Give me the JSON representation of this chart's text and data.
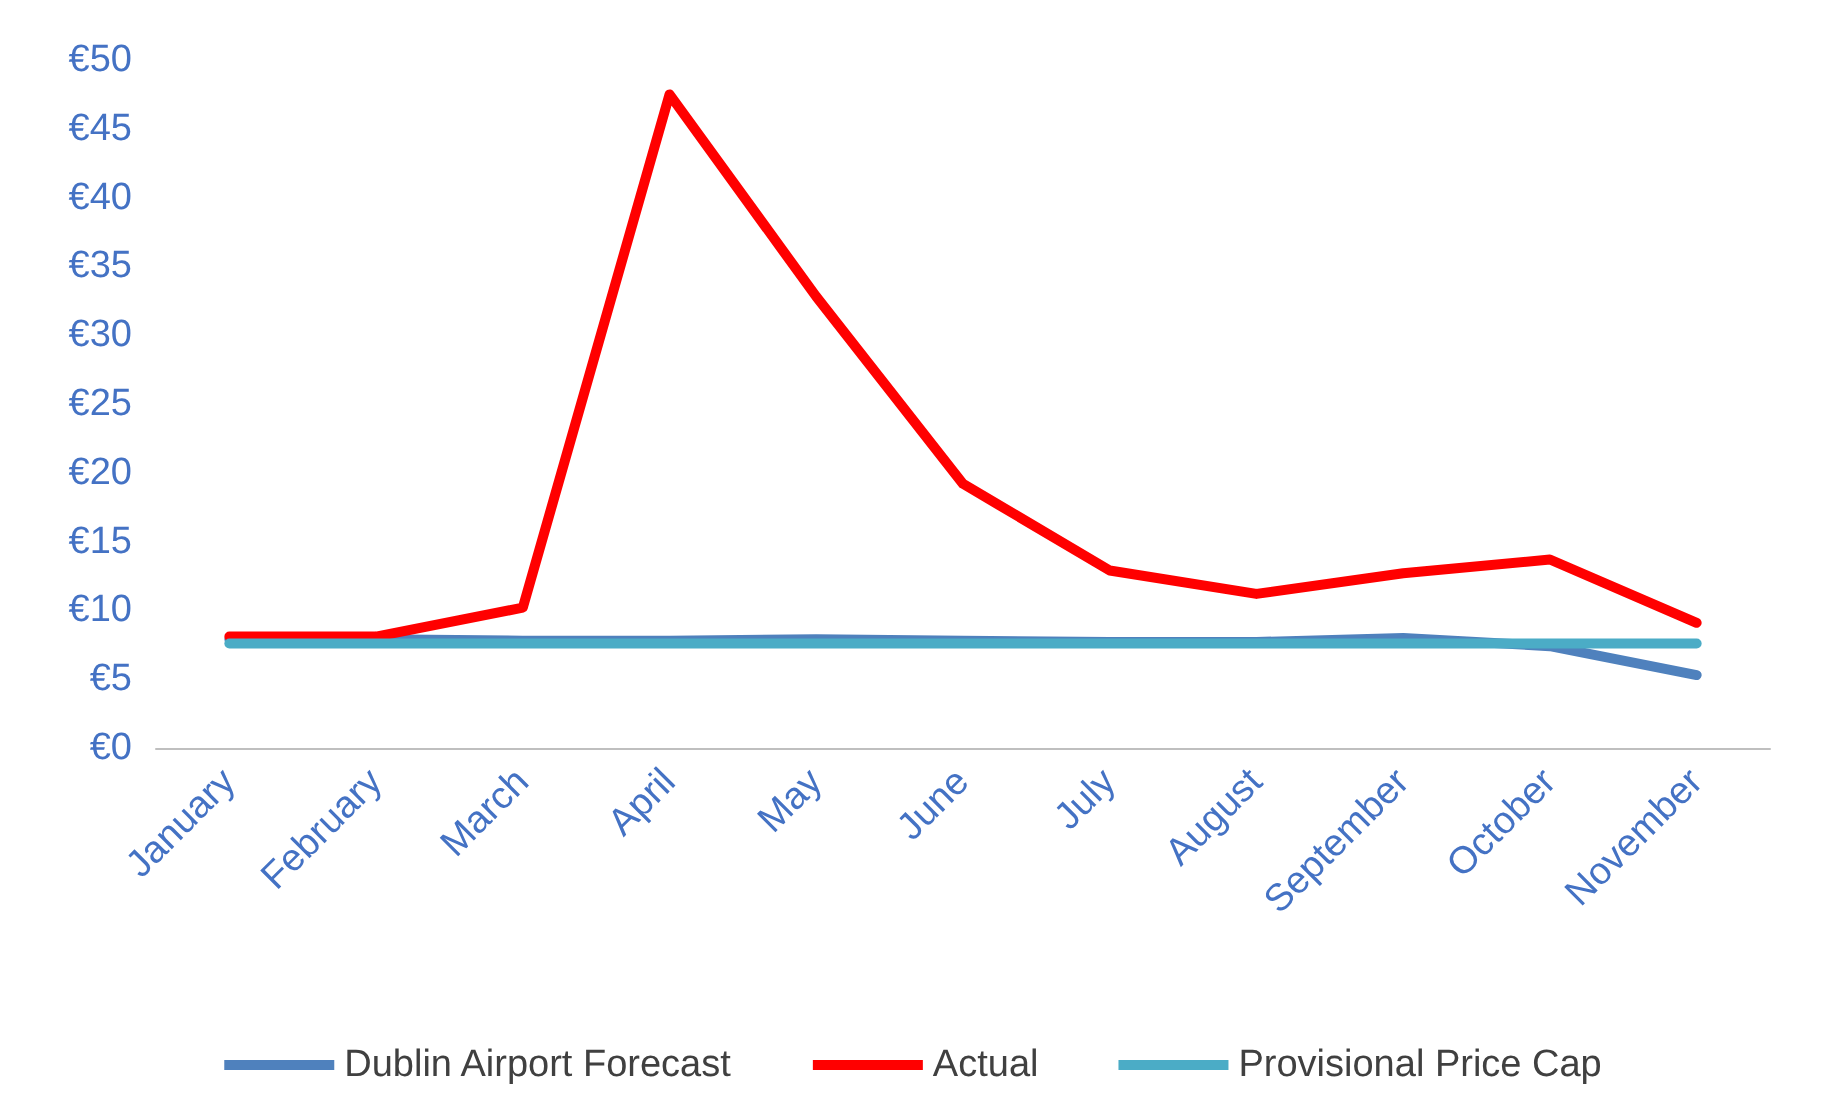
{
  "chart_data": {
    "type": "line",
    "categories": [
      "January",
      "February",
      "March",
      "April",
      "May",
      "June",
      "July",
      "August",
      "September",
      "October",
      "November"
    ],
    "series": [
      {
        "name": "Dublin Airport Forecast",
        "color": "#4f81bd",
        "values": [
          7.9,
          7.9,
          7.8,
          7.8,
          7.9,
          7.8,
          7.7,
          7.7,
          8.0,
          7.4,
          5.3
        ]
      },
      {
        "name": "Actual",
        "color": "#ff0000",
        "values": [
          8.1,
          8.1,
          10.2,
          47.5,
          32.8,
          19.2,
          12.9,
          11.2,
          12.7,
          13.7,
          9.1
        ]
      },
      {
        "name": "Provisional Price Cap",
        "color": "#4bacc6",
        "values": [
          7.6,
          7.6,
          7.6,
          7.6,
          7.6,
          7.6,
          7.6,
          7.6,
          7.6,
          7.6,
          7.6
        ]
      }
    ],
    "ylim": [
      0,
      50
    ],
    "yticks": [
      {
        "value": 0,
        "label": "€0"
      },
      {
        "value": 5,
        "label": "€5"
      },
      {
        "value": 10,
        "label": "€10"
      },
      {
        "value": 15,
        "label": "€15"
      },
      {
        "value": 20,
        "label": "€20"
      },
      {
        "value": 25,
        "label": "€25"
      },
      {
        "value": 30,
        "label": "€30"
      },
      {
        "value": 35,
        "label": "€35"
      },
      {
        "value": 40,
        "label": "€40"
      },
      {
        "value": 45,
        "label": "€45"
      },
      {
        "value": 50,
        "label": "€50"
      }
    ],
    "grid": false,
    "legend": "bottom",
    "marker": "none",
    "line_style": "solid"
  }
}
